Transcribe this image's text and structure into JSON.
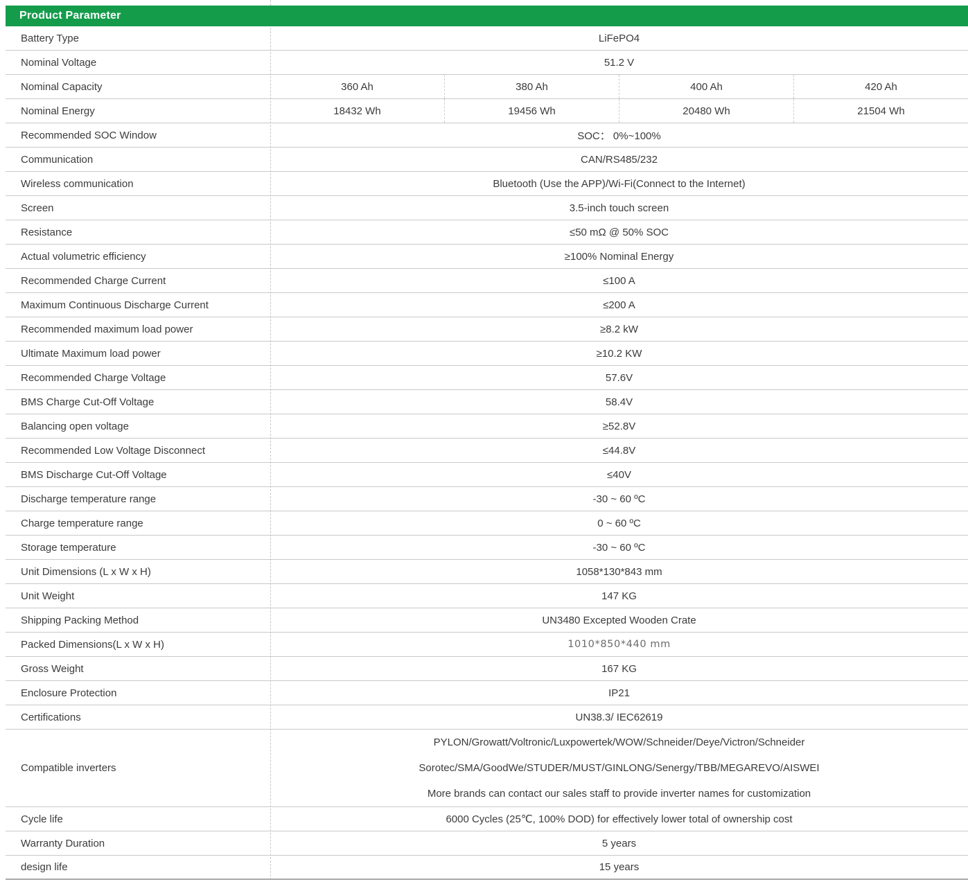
{
  "header": {
    "title": "Product Parameter"
  },
  "colors": {
    "header_bg": "#149C4B",
    "header_text": "#ffffff",
    "body_text": "#3b3b3b",
    "grid_line": "#c9c9c9"
  },
  "table": {
    "rows": [
      {
        "label": "Battery Type",
        "type": "single",
        "value": "LiFePO4"
      },
      {
        "label": "Nominal Voltage",
        "type": "single",
        "value": "51.2 V"
      },
      {
        "label": "Nominal Capacity",
        "type": "multi4",
        "values": [
          "360 Ah",
          "380 Ah",
          "400 Ah",
          "420 Ah"
        ]
      },
      {
        "label": "Nominal Energy",
        "type": "multi4",
        "values": [
          "18432 Wh",
          "19456 Wh",
          "20480 Wh",
          "21504 Wh"
        ]
      },
      {
        "label": "Recommended SOC Window",
        "type": "single",
        "value": "SOC： 0%~100%"
      },
      {
        "label": "Communication",
        "type": "single",
        "value": "CAN/RS485/232"
      },
      {
        "label": "Wireless communication",
        "type": "single",
        "value": "Bluetooth (Use the APP)/Wi-Fi(Connect to the Internet)"
      },
      {
        "label": "Screen",
        "type": "single",
        "value": "3.5-inch touch screen"
      },
      {
        "label": "Resistance",
        "type": "single",
        "value": "≤50 mΩ @ 50% SOC"
      },
      {
        "label": "Actual volumetric efficiency",
        "type": "single",
        "value": "≥100% Nominal Energy"
      },
      {
        "label": "Recommended Charge Current",
        "type": "single",
        "value": "≤100 A"
      },
      {
        "label": "Maximum Continuous Discharge Current",
        "type": "single",
        "value": "≤200 A"
      },
      {
        "label": "Recommended maximum load power",
        "type": "single",
        "value": "≥8.2 kW"
      },
      {
        "label": "Ultimate Maximum load power",
        "type": "single",
        "value": "≥10.2 KW"
      },
      {
        "label": "Recommended Charge Voltage",
        "type": "single",
        "value": "57.6V"
      },
      {
        "label": "BMS Charge Cut-Off Voltage",
        "type": "single",
        "value": "58.4V"
      },
      {
        "label": "Balancing open voltage",
        "type": "single",
        "value": "≥52.8V"
      },
      {
        "label": "Recommended Low Voltage Disconnect",
        "type": "single",
        "value": "≤44.8V"
      },
      {
        "label": "BMS Discharge Cut-Off Voltage",
        "type": "single",
        "value": "≤40V"
      },
      {
        "label": "Discharge temperature range",
        "type": "single",
        "value": "-30 ~ 60 ºC"
      },
      {
        "label": "Charge temperature range",
        "type": "single",
        "value": "0 ~ 60 ºC"
      },
      {
        "label": "Storage temperature",
        "type": "single",
        "value": "-30 ~ 60 ºC"
      },
      {
        "label": "Unit Dimensions (L x W x H)",
        "type": "single",
        "value": "1058*130*843 mm"
      },
      {
        "label": "Unit Weight",
        "type": "single",
        "value": "147 KG"
      },
      {
        "label": "Shipping Packing Method",
        "type": "single",
        "value": "UN3480 Excepted Wooden Crate"
      },
      {
        "label": "Packed Dimensions(L x W x H)",
        "type": "single",
        "value": "1010*850*440 mm",
        "muted": true
      },
      {
        "label": "Gross Weight",
        "type": "single",
        "value": "167 KG"
      },
      {
        "label": "Enclosure Protection",
        "type": "single",
        "value": "IP21"
      },
      {
        "label": "Certifications",
        "type": "single",
        "value": "UN38.3/ IEC62619"
      },
      {
        "label": "Compatible inverters",
        "type": "multiline",
        "values": [
          "PYLON/Growatt/Voltronic/Luxpowertek/WOW/Schneider/Deye/Victron/Schneider",
          "Sorotec/SMA/GoodWe/STUDER/MUST/GINLONG/Senergy/TBB/MEGAREVO/AISWEI",
          "More brands can contact our sales staff to provide inverter names for customization"
        ]
      },
      {
        "label": "Cycle life",
        "type": "single",
        "value": "6000 Cycles (25℃, 100% DOD) for effectively lower total of ownership cost"
      },
      {
        "label": "Warranty Duration",
        "type": "single",
        "value": "5 years"
      },
      {
        "label": "design life",
        "type": "single",
        "value": "15 years"
      }
    ]
  }
}
